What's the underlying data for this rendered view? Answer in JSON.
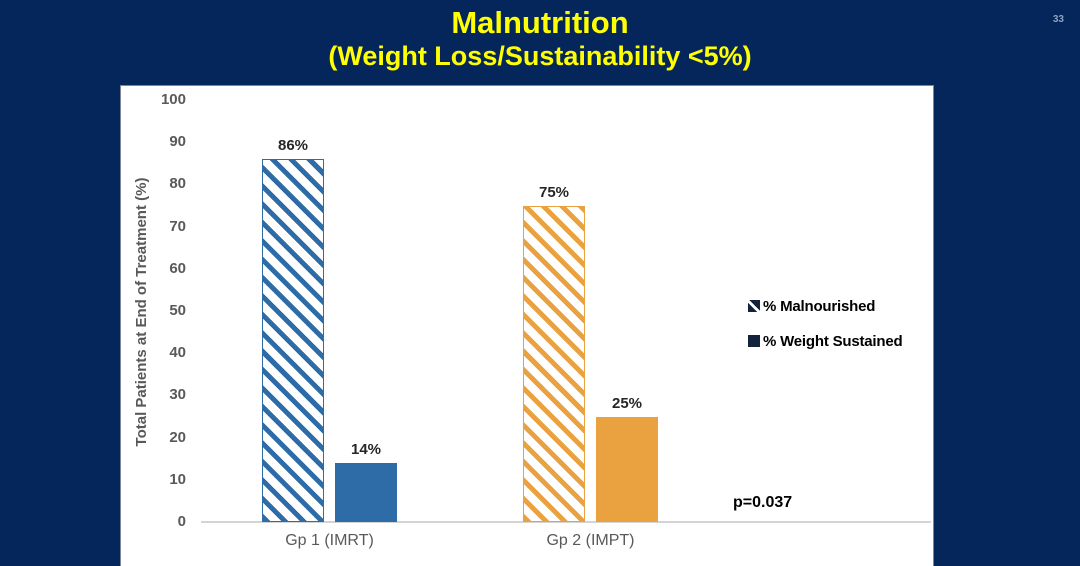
{
  "slide": {
    "page_number": "33",
    "title": "Malnutrition",
    "subtitle": "(Weight Loss/Sustainability <5%)"
  },
  "colors": {
    "background": "#04265a",
    "title_text": "#ffff00",
    "group1_blue": "#2d6ca6",
    "group2_orange": "#e9a23f",
    "legend_marker": "#13223d",
    "axis_text": "#595959",
    "axis_line": "#d4d4d4"
  },
  "chart_data": {
    "type": "bar",
    "title": "Malnutrition (Weight Loss/Sustainability <5%)",
    "xlabel": "",
    "ylabel": "Total Patients at End of Treatment (%)",
    "ylim": [
      0,
      100
    ],
    "ytick_step": 10,
    "grid": false,
    "legend_position": "right",
    "categories": [
      "Gp 1 (IMRT)",
      "Gp 2 (IMPT)"
    ],
    "category_colors": [
      "#2d6ca6",
      "#e9a23f"
    ],
    "series": [
      {
        "name": "% Malnourished",
        "pattern": "diagonal-hatch",
        "values": [
          86,
          75
        ],
        "labels": [
          "86%",
          "75%"
        ]
      },
      {
        "name": "% Weight Sustained",
        "pattern": "solid",
        "values": [
          14,
          25
        ],
        "labels": [
          "14%",
          "25%"
        ]
      }
    ],
    "annotation": "p=0.037"
  }
}
